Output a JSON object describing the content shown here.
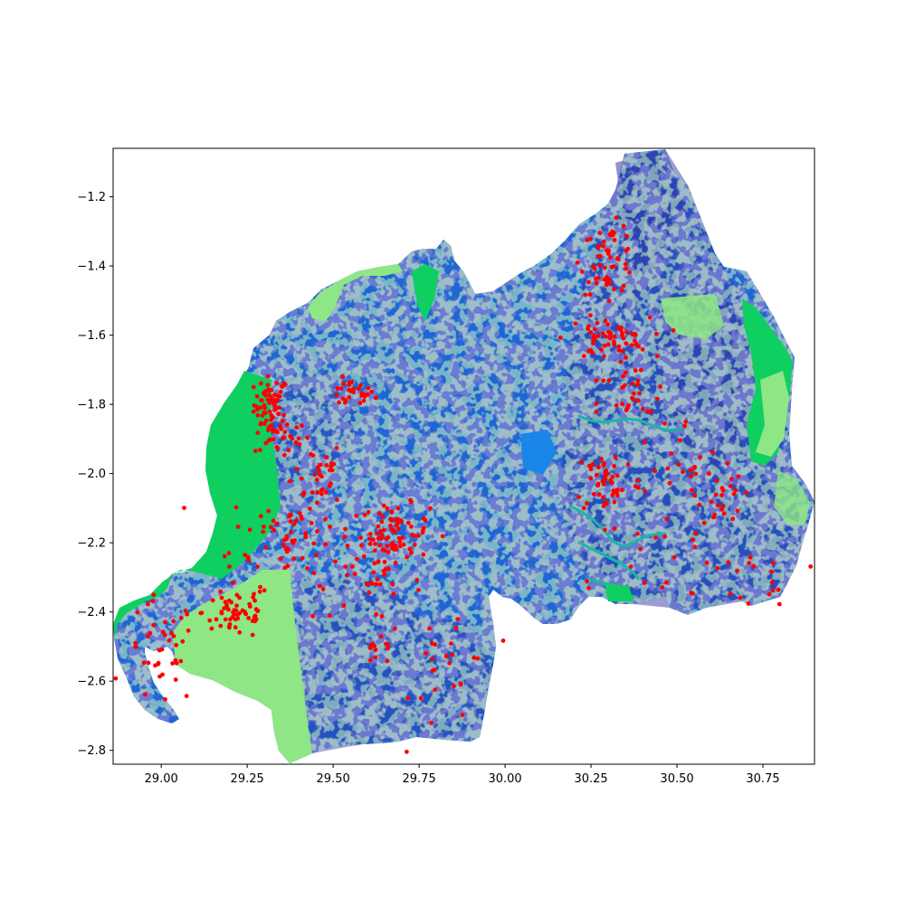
{
  "map": {
    "title": "",
    "xlabel": "",
    "ylabel": ""
  },
  "chart_data": {
    "type": "scatter",
    "title": "",
    "xlabel": "",
    "ylabel": "",
    "xlim": [
      28.86,
      30.9
    ],
    "ylim": [
      -2.84,
      -1.06
    ],
    "grid": false,
    "x_ticks": [
      29.0,
      29.25,
      29.5,
      29.75,
      30.0,
      30.25,
      30.5,
      30.75
    ],
    "x_tick_labels": [
      "29.00",
      "29.25",
      "29.50",
      "29.75",
      "30.00",
      "30.25",
      "30.50",
      "30.75"
    ],
    "y_ticks": [
      -1.2,
      -1.4,
      -1.6,
      -1.8,
      -2.0,
      -2.2,
      -2.4,
      -2.6,
      -2.8
    ],
    "y_tick_labels": [
      "−1.2",
      "−1.4",
      "−1.6",
      "−1.8",
      "−2.0",
      "−2.2",
      "−2.4",
      "−2.6",
      "−2.8"
    ],
    "colors": {
      "main_land": "#1f66d4",
      "dense_land": "#3237a6",
      "forest_green": "#0ecf60",
      "light_green": "#8ee784",
      "water_teal": "#19b8a3",
      "point_red": "#ff0000",
      "lake_blue": "#1a86e8"
    },
    "clusters": [
      {
        "cx": 29.32,
        "cy": -1.8,
        "sx": 0.025,
        "sy": 0.04,
        "n": 60
      },
      {
        "cx": 29.55,
        "cy": -1.77,
        "sx": 0.035,
        "sy": 0.02,
        "n": 30
      },
      {
        "cx": 29.35,
        "cy": -1.89,
        "sx": 0.04,
        "sy": 0.03,
        "n": 30
      },
      {
        "cx": 29.45,
        "cy": -2.0,
        "sx": 0.04,
        "sy": 0.05,
        "n": 30
      },
      {
        "cx": 29.38,
        "cy": -2.18,
        "sx": 0.09,
        "sy": 0.07,
        "n": 70
      },
      {
        "cx": 29.68,
        "cy": -2.17,
        "sx": 0.05,
        "sy": 0.04,
        "n": 80
      },
      {
        "cx": 29.6,
        "cy": -2.32,
        "sx": 0.08,
        "sy": 0.05,
        "n": 30
      },
      {
        "cx": 29.22,
        "cy": -2.4,
        "sx": 0.05,
        "sy": 0.04,
        "n": 60
      },
      {
        "cx": 29.0,
        "cy": -2.52,
        "sx": 0.05,
        "sy": 0.08,
        "n": 40
      },
      {
        "cx": 29.63,
        "cy": -2.52,
        "sx": 0.03,
        "sy": 0.02,
        "n": 12
      },
      {
        "cx": 29.85,
        "cy": -2.55,
        "sx": 0.06,
        "sy": 0.1,
        "n": 25
      },
      {
        "cx": 30.3,
        "cy": -1.38,
        "sx": 0.04,
        "sy": 0.05,
        "n": 55
      },
      {
        "cx": 30.3,
        "cy": -1.61,
        "sx": 0.06,
        "sy": 0.03,
        "n": 60
      },
      {
        "cx": 30.37,
        "cy": -1.8,
        "sx": 0.05,
        "sy": 0.06,
        "n": 30
      },
      {
        "cx": 30.3,
        "cy": -2.02,
        "sx": 0.05,
        "sy": 0.05,
        "n": 50
      },
      {
        "cx": 30.53,
        "cy": -2.0,
        "sx": 0.05,
        "sy": 0.08,
        "n": 20
      },
      {
        "cx": 30.63,
        "cy": -2.06,
        "sx": 0.03,
        "sy": 0.05,
        "n": 25
      },
      {
        "cx": 30.78,
        "cy": -2.3,
        "sx": 0.05,
        "sy": 0.04,
        "n": 15
      },
      {
        "cx": 30.4,
        "cy": -2.25,
        "sx": 0.15,
        "sy": 0.07,
        "n": 20
      }
    ]
  }
}
